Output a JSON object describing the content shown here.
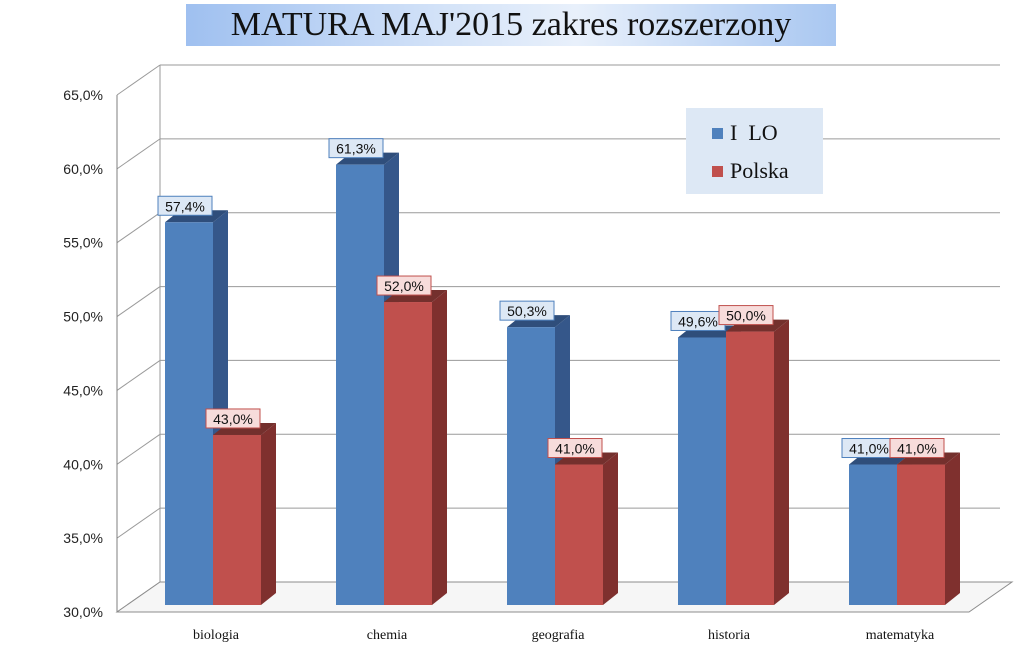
{
  "title": "MATURA MAJ'2015 zakres rozszerzony",
  "legend": {
    "series0": "I  LO",
    "series1": "Polska"
  },
  "colors": {
    "series0": "#4f81bd",
    "series1": "#c0504d"
  },
  "chart_data": {
    "type": "bar",
    "title": "MATURA MAJ'2015 zakres rozszerzony",
    "categories": [
      "biologia",
      "chemia",
      "geografia",
      "historia",
      "matematyka"
    ],
    "series": [
      {
        "name": "I  LO",
        "values": [
          57.4,
          61.3,
          50.3,
          49.6,
          41.0
        ],
        "labels": [
          "57,4%",
          "61,3%",
          "50,3%",
          "49,6%",
          "41,0%"
        ]
      },
      {
        "name": "Polska",
        "values": [
          43.0,
          52.0,
          41.0,
          50.0,
          41.0
        ],
        "labels": [
          "43,0%",
          "52,0%",
          "41,0%",
          "50,0%",
          "41,0%"
        ]
      }
    ],
    "ylim": [
      30,
      65
    ],
    "yticks": [
      "30,0%",
      "35,0%",
      "40,0%",
      "45,0%",
      "50,0%",
      "55,0%",
      "60,0%",
      "65,0%"
    ],
    "grid": true,
    "legend_position": "top-right",
    "xlabel": "",
    "ylabel": ""
  }
}
